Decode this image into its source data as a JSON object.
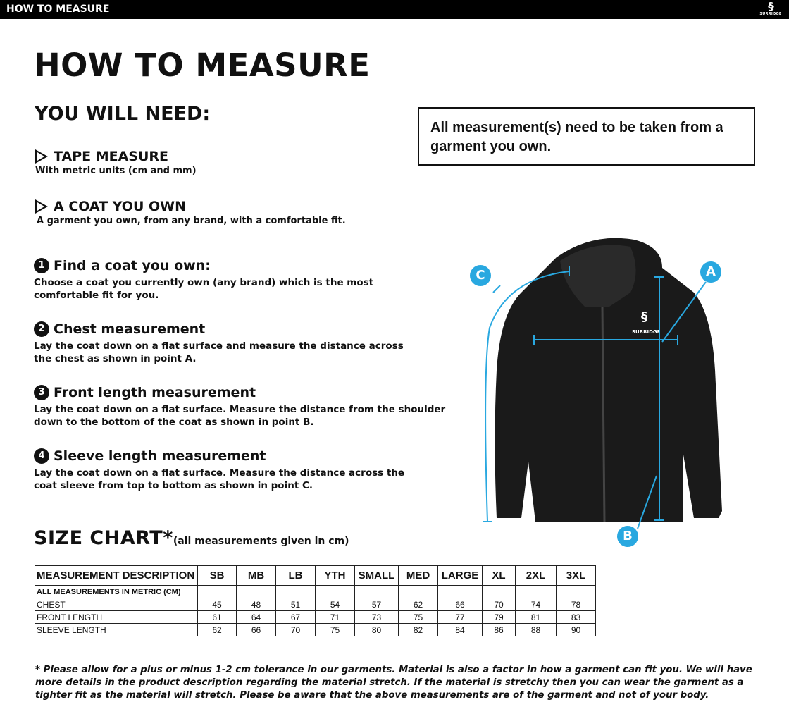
{
  "header": {
    "title": "HOW TO MEASURE",
    "brand": "SURRIDGE"
  },
  "main_title": "HOW TO MEASURE",
  "you_will_need": "YOU WILL NEED:",
  "note": "All measurement(s) need to be taken from a garment you own.",
  "needs": [
    {
      "title": "TAPE MEASURE",
      "text": "With metric units (cm and mm)"
    },
    {
      "title": "A COAT YOU OWN",
      "text": "A garment you own, from any brand, with a comfortable fit."
    }
  ],
  "steps": [
    {
      "num": "1",
      "title": "Find a coat you own:",
      "text": "Choose a coat you currently own (any brand) which is the most comfortable fit for you."
    },
    {
      "num": "2",
      "title": "Chest measurement",
      "text": "Lay the coat down on a flat surface and measure the distance across the chest as shown in point A."
    },
    {
      "num": "3",
      "title": "Front length measurement",
      "text": "Lay the coat down on a flat surface. Measure the distance from the shoulder down to the bottom of the coat as shown in point B."
    },
    {
      "num": "4",
      "title": "Sleeve length measurement",
      "text": "Lay the coat down on a flat surface. Measure the distance across the coat sleeve from top to bottom as shown in point C."
    }
  ],
  "diagram": {
    "points": [
      "A",
      "B",
      "C"
    ],
    "accent": "#29a8e0",
    "logo_text": "SURRIDGE"
  },
  "size_chart": {
    "title": "SIZE CHART*",
    "subtitle": "(all measurements given in cm)",
    "headers": [
      "MEASUREMENT DESCRIPTION",
      "SB",
      "MB",
      "LB",
      "YTH",
      "SMALL",
      "MED",
      "LARGE",
      "XL",
      "2XL",
      "3XL"
    ],
    "rows": [
      [
        "ALL MEASUREMENTS IN METRIC (CM)",
        "",
        "",
        "",
        "",
        "",
        "",
        "",
        "",
        "",
        ""
      ],
      [
        "CHEST",
        "45",
        "48",
        "51",
        "54",
        "57",
        "62",
        "66",
        "70",
        "74",
        "78"
      ],
      [
        "FRONT LENGTH",
        "61",
        "64",
        "67",
        "71",
        "73",
        "75",
        "77",
        "79",
        "81",
        "83"
      ],
      [
        "SLEEVE LENGTH",
        "62",
        "66",
        "70",
        "75",
        "80",
        "82",
        "84",
        "86",
        "88",
        "90"
      ]
    ]
  },
  "footnote": "* Please allow for a plus or minus 1-2 cm tolerance in our garments. Material is also a factor in how a garment can fit you. We will have more details in the product description regarding the material stretch.  If the material is stretchy then you can wear the garment as a tighter fit as the material will stretch.  Please be aware that the above measurements are of the garment and not of your body."
}
